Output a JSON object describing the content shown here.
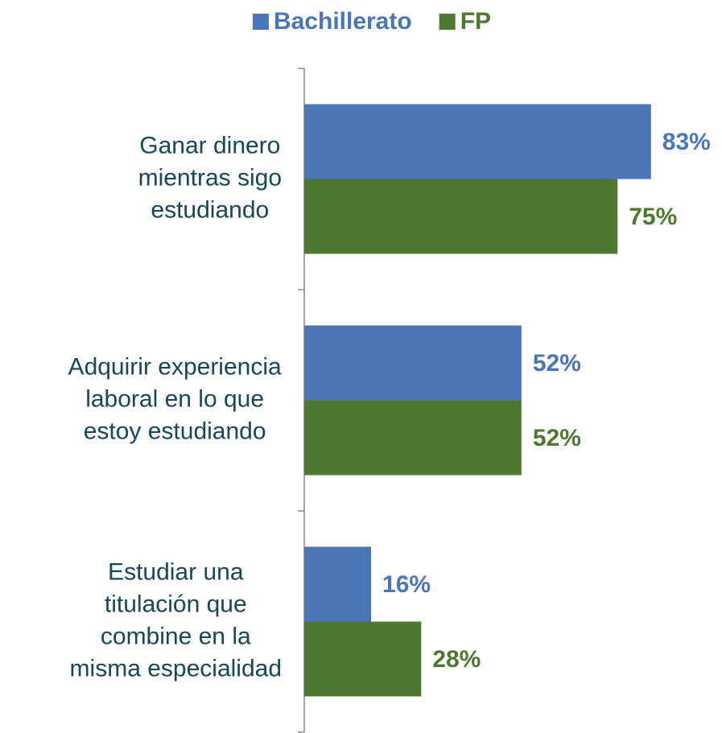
{
  "chart_data": {
    "type": "hbar",
    "categories": [
      [
        "Ganar dinero",
        "mientras sigo",
        "estudiando"
      ],
      [
        "Adquirir experiencia",
        "laboral en lo que",
        "estoy estudiando"
      ],
      [
        "Estudiar una",
        "titulación que",
        "combine en la",
        "misma especialidad"
      ]
    ],
    "series": [
      {
        "name": "Bachillerato",
        "color": "#4a76b8",
        "values": [
          83,
          52,
          16
        ],
        "value_labels": [
          "83%",
          "52%",
          "16%"
        ]
      },
      {
        "name": "FP",
        "color": "#4e772f",
        "values": [
          75,
          52,
          28
        ],
        "value_labels": [
          "75%",
          "52%",
          "28%"
        ]
      }
    ],
    "xlim": [
      0,
      100
    ],
    "legend": "top"
  }
}
